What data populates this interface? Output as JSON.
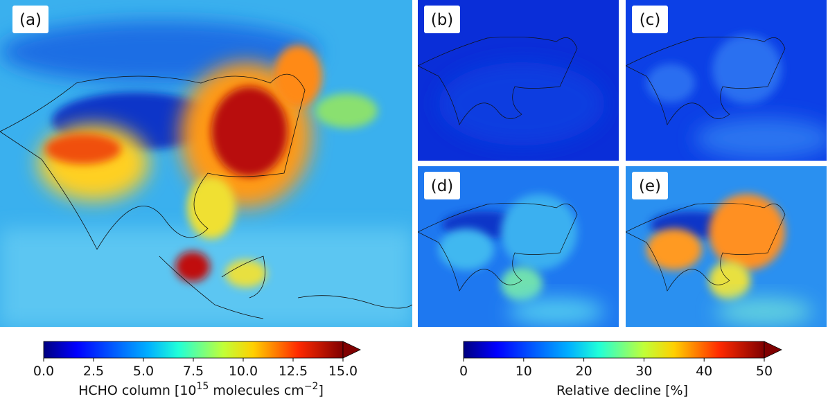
{
  "panels": [
    {
      "label": "(a)"
    },
    {
      "label": "(b)"
    },
    {
      "label": "(c)"
    },
    {
      "label": "(d)"
    },
    {
      "label": "(e)"
    }
  ],
  "colorbars": [
    {
      "type": "colorbar",
      "colormap": "jet",
      "extend": "max",
      "lim": [
        0,
        15
      ],
      "ticks": [
        {
          "value": 0,
          "label": "0.0"
        },
        2.5,
        {
          "value": 5,
          "label": "5.0"
        },
        7.5,
        {
          "value": 10,
          "label": "10.0"
        },
        12.5,
        {
          "value": 15,
          "label": "15.0"
        }
      ],
      "label_segments": [
        {
          "text": "HCHO column [10"
        },
        {
          "sup": "15"
        },
        {
          "text": " molecules cm"
        },
        {
          "sup": "−2"
        },
        {
          "text": "]"
        }
      ]
    },
    {
      "type": "colorbar",
      "colormap": "jet",
      "extend": "max",
      "lim": [
        0,
        50
      ],
      "ticks": [
        0,
        10,
        20,
        30,
        40,
        50
      ],
      "label_segments": [
        {
          "text": "Relative decline [%]"
        }
      ]
    }
  ]
}
